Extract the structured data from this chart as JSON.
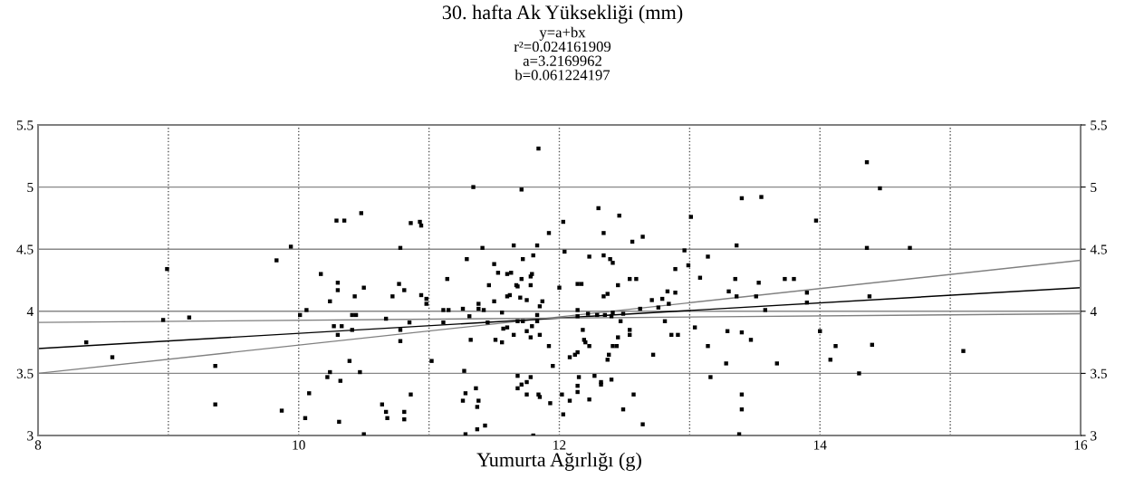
{
  "chart_data": {
    "type": "scatter",
    "title": "30. hafta Ak Yüksekliği (mm)",
    "subtitle": "y=a+bx\nr²=0.024161909\na=3.2169962\nb=0.061224197",
    "xlabel": "Yumurta Ağırlığı (g)",
    "xlim": [
      8,
      16
    ],
    "xticks": [
      8,
      {
        "value": 9,
        "label": null
      },
      10,
      {
        "value": 11,
        "label": null
      },
      12,
      {
        "value": 13,
        "label": null
      },
      14,
      {
        "value": 15,
        "label": null
      },
      16
    ],
    "ylim": [
      3,
      5.5
    ],
    "yticks": [
      3,
      3.5,
      4,
      4.5,
      5,
      5.5
    ],
    "y2lim": [
      3,
      5.5
    ],
    "y2ticks": [
      3,
      3.5,
      4,
      4.5,
      5,
      5.5
    ],
    "grid": true,
    "series": [
      {
        "color": "#000000",
        "marker": "square",
        "x": [
          8.37,
          8.57,
          8.99,
          8.96,
          9.16,
          9.36,
          9.36,
          9.83,
          9.94,
          9.87,
          10.01,
          10.06,
          10.05,
          10.08,
          10.17,
          10.22,
          10.24,
          10.24,
          10.27,
          10.29,
          10.3,
          10.3,
          10.3,
          10.31,
          10.32,
          10.33,
          10.35,
          10.39,
          10.41,
          10.44,
          10.41,
          10.43,
          10.47,
          10.48,
          10.5,
          10.5,
          10.64,
          10.67,
          10.67,
          10.68,
          10.72,
          10.77,
          10.78,
          10.78,
          10.78,
          10.81,
          10.81,
          10.81,
          10.85,
          10.86,
          10.86,
          10.93,
          10.94,
          10.94,
          10.98,
          10.98,
          11.02,
          11.11,
          11.11,
          11.14,
          11.15,
          11.26,
          11.27,
          11.29,
          11.26,
          11.28,
          11.28,
          11.31,
          11.32,
          11.34,
          11.36,
          11.37,
          11.38,
          11.37,
          11.38,
          11.38,
          11.41,
          11.42,
          11.43,
          11.45,
          11.46,
          11.5,
          11.5,
          11.51,
          11.53,
          11.56,
          11.56,
          11.57,
          11.6,
          11.6,
          11.6,
          11.62,
          11.63,
          11.65,
          11.65,
          11.67,
          11.68,
          11.68,
          11.68,
          11.68,
          11.7,
          11.71,
          11.71,
          11.71,
          11.72,
          11.72,
          11.75,
          11.75,
          11.75,
          11.75,
          11.78,
          11.78,
          11.78,
          11.78,
          11.79,
          11.79,
          11.8,
          11.8,
          11.83,
          11.83,
          11.83,
          11.84,
          11.84,
          11.85,
          11.85,
          11.85,
          11.87,
          11.92,
          11.92,
          11.93,
          11.95,
          12.0,
          12.03,
          12.04,
          12.02,
          12.03,
          12.08,
          12.08,
          12.12,
          12.14,
          12.14,
          12.17,
          12.14,
          12.14,
          12.15,
          12.14,
          12.14,
          12.18,
          12.19,
          12.2,
          12.22,
          12.23,
          12.23,
          12.23,
          12.27,
          12.29,
          12.3,
          12.32,
          12.32,
          12.34,
          12.34,
          12.34,
          12.35,
          12.37,
          12.37,
          12.38,
          12.39,
          12.4,
          12.4,
          12.41,
          12.41,
          12.41,
          12.44,
          12.45,
          12.45,
          12.46,
          12.47,
          12.49,
          12.49,
          12.54,
          12.54,
          12.54,
          12.57,
          12.59,
          12.56,
          12.62,
          12.64,
          12.64,
          12.71,
          12.72,
          12.76,
          12.79,
          12.81,
          12.83,
          12.84,
          12.86,
          12.89,
          12.89,
          12.91,
          12.96,
          12.99,
          13.01,
          13.04,
          13.08,
          13.14,
          13.14,
          13.16,
          13.28,
          13.29,
          13.3,
          13.35,
          13.36,
          13.36,
          13.38,
          13.4,
          13.4,
          13.4,
          13.4,
          13.47,
          13.51,
          13.53,
          13.55,
          13.58,
          13.67,
          13.73,
          13.8,
          13.9,
          13.9,
          13.97,
          14.0,
          14.08,
          14.12,
          14.3,
          14.36,
          14.36,
          14.38,
          14.4,
          14.46,
          14.69,
          15.1
        ],
        "values": [
          3.75,
          3.63,
          4.34,
          3.93,
          3.95,
          3.56,
          3.25,
          4.41,
          4.52,
          3.2,
          3.97,
          4.01,
          3.14,
          3.34,
          4.3,
          3.47,
          4.08,
          3.51,
          3.88,
          4.73,
          4.23,
          4.17,
          3.81,
          3.11,
          3.44,
          3.88,
          4.73,
          3.6,
          3.97,
          3.97,
          3.85,
          4.12,
          3.51,
          4.79,
          4.19,
          3.01,
          3.25,
          3.94,
          3.19,
          3.14,
          4.12,
          4.22,
          4.51,
          3.85,
          3.76,
          4.17,
          3.19,
          3.13,
          3.91,
          4.71,
          3.33,
          4.72,
          4.69,
          4.13,
          4.1,
          4.06,
          3.6,
          4.01,
          3.91,
          4.26,
          4.01,
          4.02,
          3.52,
          4.42,
          3.28,
          3.34,
          3.01,
          3.96,
          3.77,
          5.0,
          3.38,
          3.23,
          3.28,
          3.05,
          4.06,
          4.02,
          4.51,
          4.01,
          3.08,
          3.91,
          4.21,
          4.38,
          4.08,
          3.77,
          4.31,
          3.99,
          3.75,
          3.86,
          4.3,
          3.87,
          4.12,
          4.13,
          4.31,
          4.53,
          3.81,
          4.21,
          4.2,
          3.48,
          3.38,
          3.92,
          4.11,
          4.26,
          4.98,
          3.41,
          4.42,
          3.92,
          3.84,
          3.33,
          3.43,
          4.09,
          4.28,
          4.21,
          3.79,
          3.47,
          4.3,
          3.88,
          4.45,
          3.0,
          4.53,
          3.97,
          3.92,
          5.31,
          3.33,
          3.31,
          3.81,
          4.04,
          4.08,
          3.72,
          4.63,
          3.26,
          3.56,
          4.19,
          4.72,
          4.48,
          3.33,
          3.17,
          3.63,
          3.28,
          3.65,
          3.67,
          4.22,
          4.22,
          4.01,
          3.96,
          3.47,
          3.4,
          3.35,
          3.85,
          3.77,
          3.75,
          3.98,
          4.44,
          3.72,
          3.29,
          3.48,
          3.97,
          4.83,
          3.43,
          3.41,
          4.12,
          4.45,
          4.63,
          3.97,
          3.61,
          4.14,
          3.65,
          4.42,
          3.45,
          3.96,
          4.39,
          3.99,
          3.72,
          3.72,
          3.79,
          4.21,
          4.77,
          3.92,
          3.21,
          3.98,
          3.85,
          3.81,
          4.26,
          3.33,
          4.26,
          4.56,
          4.02,
          4.6,
          3.09,
          4.09,
          3.65,
          4.03,
          4.1,
          3.92,
          4.16,
          4.06,
          3.81,
          4.15,
          4.34,
          3.81,
          4.49,
          4.37,
          4.76,
          3.87,
          4.27,
          4.44,
          3.72,
          3.47,
          3.58,
          3.84,
          4.16,
          4.26,
          4.53,
          4.12,
          3.01,
          4.91,
          3.83,
          3.33,
          3.21,
          3.77,
          4.12,
          4.23,
          4.92,
          4.01,
          3.58,
          4.26,
          4.26,
          4.07,
          4.15,
          4.73,
          3.84,
          3.61,
          3.72,
          3.5,
          5.2,
          4.51,
          4.12,
          3.73,
          4.99,
          4.51,
          3.68
        ]
      },
      {
        "type": "line",
        "color": "#808080",
        "x": [
          8,
          16
        ],
        "values": [
          3.5,
          4.41
        ]
      },
      {
        "type": "line",
        "color": "#000000",
        "x": [
          8,
          16
        ],
        "values": [
          3.7,
          4.19
        ]
      },
      {
        "type": "line",
        "color": "#808080",
        "x": [
          8,
          16
        ],
        "values": [
          3.91,
          3.98
        ]
      }
    ]
  }
}
